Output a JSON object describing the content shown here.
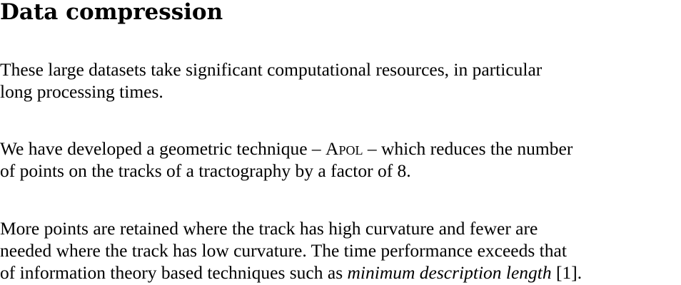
{
  "title": "Data compression",
  "p1": {
    "line1": "These large datasets take significant computational resources, in particular",
    "line2": "long processing times."
  },
  "p2": {
    "line1_a": "We have developed a geometric technique –",
    "line1_method": "Apol",
    "line1_b": "– which reduces the number",
    "line2": "of points on the tracks of a tractography by a factor of 8."
  },
  "p3": {
    "line1": "More points are retained where the track has high curvature and fewer are",
    "line2": "needed where the track has low curvature. The time performance exceeds that",
    "line3_a": "of information theory based techniques such as",
    "line3_term": "minimum description length",
    "line3_b": "[1]."
  }
}
